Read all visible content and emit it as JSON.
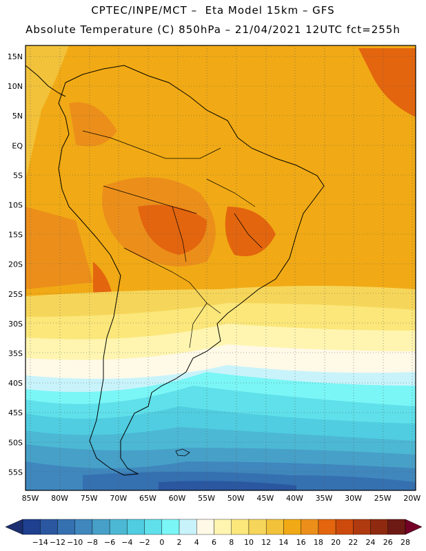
{
  "header": {
    "line1": "CPTEC/INPE/MCT –  Eta Model 15km – GFS",
    "line2": "Absolute Temperature (C) 850hPa – 21/04/2021 12UTC fct=255h"
  },
  "map": {
    "lat_labels": [
      "15N",
      "10N",
      "5N",
      "EQ",
      "5S",
      "10S",
      "15S",
      "20S",
      "25S",
      "30S",
      "35S",
      "40S",
      "45S",
      "50S",
      "55S"
    ],
    "lon_labels": [
      "85W",
      "80W",
      "75W",
      "70W",
      "65W",
      "60W",
      "55W",
      "50W",
      "45W",
      "40W",
      "35W",
      "30W",
      "25W",
      "20W"
    ],
    "region": "South America"
  },
  "colorbar": {
    "labels": [
      "-14",
      "-12",
      "-10",
      "-8",
      "-6",
      "-4",
      "-2",
      "0",
      "2",
      "4",
      "6",
      "8",
      "10",
      "12",
      "14",
      "16",
      "18",
      "20",
      "22",
      "24",
      "26",
      "28"
    ],
    "colors": [
      "#1f3f8f",
      "#2a57a0",
      "#3570b0",
      "#3f87bd",
      "#47a0c8",
      "#4cb8d4",
      "#50cde0",
      "#5fe0ea",
      "#7af6f6",
      "#c8f3fb",
      "#fff9e8",
      "#fff5b0",
      "#fbe77a",
      "#f6d65a",
      "#f2c23a",
      "#f1aa15",
      "#ec8f1a",
      "#e3650e",
      "#cc4b0c",
      "#b03a10",
      "#8e2a10",
      "#6e1a14"
    ],
    "low_arrow_color": "#1b2f70",
    "high_arrow_color": "#730026"
  }
}
